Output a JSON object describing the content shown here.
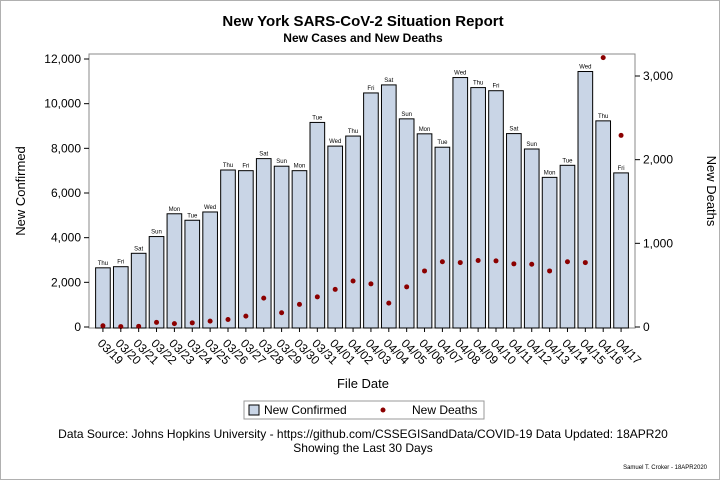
{
  "chart_data": {
    "type": "bar",
    "title": "New York SARS-CoV-2 Situation Report",
    "subtitle": "New Cases and New Deaths",
    "xlabel": "File Date",
    "ylabel": "New Confirmed",
    "y2label": "New Deaths",
    "ylim": [
      0,
      12000
    ],
    "y2lim": [
      0,
      3000
    ],
    "y_ticks": [
      0,
      2000,
      4000,
      6000,
      8000,
      10000,
      12000
    ],
    "y_tick_labels": [
      "0",
      "2,000",
      "4,000",
      "6,000",
      "8,000",
      "10,000",
      "12,000"
    ],
    "y2_ticks": [
      0,
      1000,
      2000,
      3000
    ],
    "y2_tick_labels": [
      "0",
      "1,000",
      "2,000",
      "3,000"
    ],
    "categories": [
      "03/19",
      "03/20",
      "03/21",
      "03/22",
      "03/23",
      "03/24",
      "03/25",
      "03/26",
      "03/27",
      "03/28",
      "03/29",
      "03/30",
      "03/31",
      "04/01",
      "04/02",
      "04/03",
      "04/04",
      "04/05",
      "04/06",
      "04/07",
      "04/08",
      "04/09",
      "04/10",
      "04/11",
      "04/12",
      "04/13",
      "04/14",
      "04/15",
      "04/16",
      "04/17"
    ],
    "day_labels": [
      "Thu",
      "Fri",
      "Sat",
      "Sun",
      "Mon",
      "Tue",
      "Wed",
      "Thu",
      "Fri",
      "Sat",
      "Sun",
      "Mon",
      "Tue",
      "Wed",
      "Thu",
      "Fri",
      "Sat",
      "Sun",
      "Mon",
      "Tue",
      "Wed",
      "Thu",
      "Fri",
      "Sat",
      "Sun",
      "Mon",
      "Tue",
      "Wed",
      "Thu",
      "Fri"
    ],
    "series": [
      {
        "name": "New Confirmed",
        "type": "bar",
        "axis": "left",
        "color": "#c9d5e6",
        "values": [
          2650,
          2700,
          3300,
          4050,
          5070,
          4780,
          5150,
          7030,
          7000,
          7540,
          7200,
          7000,
          9160,
          8100,
          8550,
          10480,
          10840,
          9320,
          8650,
          8050,
          11170,
          10720,
          10580,
          8660,
          7970,
          6700,
          7240,
          11440,
          9230,
          6900
        ]
      },
      {
        "name": "New Deaths",
        "type": "scatter",
        "axis": "right",
        "color": "#8b0000",
        "values": [
          15,
          5,
          8,
          55,
          40,
          50,
          70,
          90,
          130,
          345,
          170,
          270,
          360,
          450,
          550,
          515,
          285,
          480,
          670,
          780,
          770,
          795,
          790,
          755,
          750,
          670,
          780,
          770,
          3220,
          2290
        ]
      }
    ],
    "legend_position": "bottom-center",
    "grid": false
  },
  "footer": {
    "line1": "Data Source: Johns Hopkins University - https://github.com/CSSEGISandData/COVID-19 Data Updated: 18APR20",
    "line2": "Showing the Last 30 Days",
    "credit": "Samuel T. Croker - 18APR2020"
  },
  "colors": {
    "bar_fill": "#c9d5e6",
    "bar_stroke": "#000000",
    "death_marker": "#8b0000"
  }
}
